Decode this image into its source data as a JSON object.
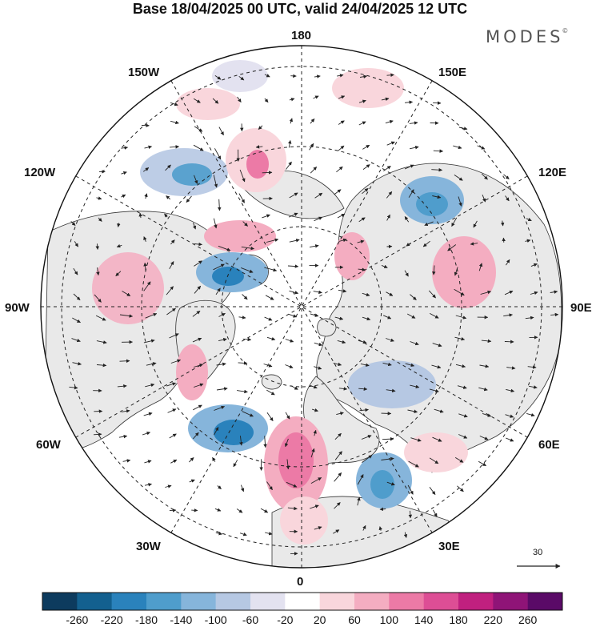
{
  "title": "Base 18/04/2025 00 UTC, valid 24/04/2025 12 UTC",
  "brand": "MODES",
  "brand_mark": "©",
  "longitude_labels": {
    "top": "180",
    "bottom": "0",
    "left": "90W",
    "right": "90E",
    "upper_left_150": "150W",
    "upper_left_120": "120W",
    "upper_right_150": "150E",
    "upper_right_120": "120E",
    "lower_left_60": "60W",
    "lower_left_30": "30W",
    "lower_right_60": "60E",
    "lower_right_30": "30E"
  },
  "reference_vector": {
    "value": "30",
    "color": "#222222"
  },
  "colorbar": {
    "labels": [
      "-260",
      "-220",
      "-180",
      "-140",
      "-100",
      "-60",
      "-20",
      "20",
      "60",
      "100",
      "140",
      "180",
      "220",
      "260"
    ],
    "colors": [
      "#0d3b5e",
      "#13608f",
      "#2a82bc",
      "#4f9dcc",
      "#86b5db",
      "#b6c8e3",
      "#e3e2f0",
      "#ffffff",
      "#f9d6dc",
      "#f4adc1",
      "#ec7aa6",
      "#dd4e95",
      "#c0207f",
      "#8f1477",
      "#5a0a67"
    ]
  },
  "map_colors": {
    "land": "#e9e9e9",
    "ocean": "#ffffff",
    "coast": "#333333",
    "grid": "#222222"
  }
}
